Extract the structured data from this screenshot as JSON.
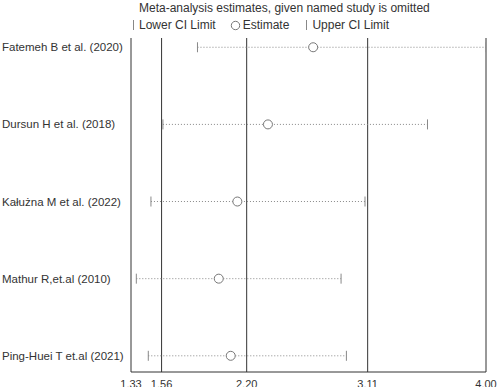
{
  "chart_data": {
    "type": "forest",
    "title": "Meta-analysis estimates, given named study is omitted",
    "categories": [
      "Fatemeh B et al. (2020)",
      "Dursun H et al. (2018)",
      "Kałużna M et al. (2022)",
      "Mathur R,et.al (2010)",
      "Ping-Huei T et.al (2021)"
    ],
    "series": [
      {
        "name": "Lower CI Limit",
        "marker": "line",
        "values": [
          1.83,
          1.57,
          1.48,
          1.37,
          1.46
        ]
      },
      {
        "name": "Estimate",
        "marker": "circle",
        "values": [
          2.7,
          2.36,
          2.13,
          1.99,
          2.08
        ]
      },
      {
        "name": "Upper CI Limit",
        "marker": "line",
        "values": [
          4.0,
          3.56,
          3.09,
          2.91,
          2.95
        ]
      }
    ],
    "xlim": [
      1.33,
      4
    ],
    "xticks": [
      1.33,
      1.56,
      {
        "value": 2.2,
        "label": "2.20"
      },
      3.11,
      {
        "value": 4,
        "label": "4.00"
      }
    ],
    "grid": true,
    "legend": "top"
  }
}
